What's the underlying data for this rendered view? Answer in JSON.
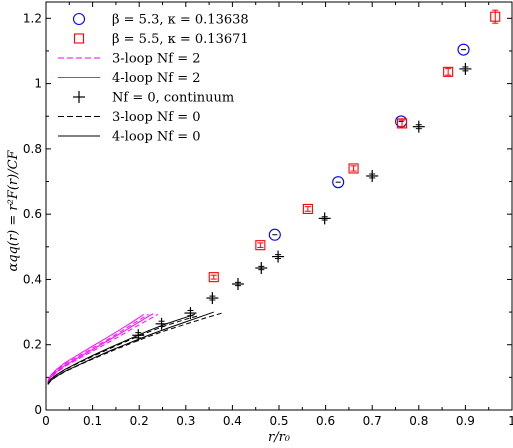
{
  "chart_data": {
    "type": "scatter",
    "title": "",
    "xlabel": "r/r₀",
    "ylabel": "αqq(r) = r²F(r)/CF",
    "xlim": [
      0,
      1
    ],
    "ylim": [
      0,
      1.25
    ],
    "xticks": [
      "0",
      "0.1",
      "0.2",
      "0.3",
      "0.4",
      "0.5",
      "0.6",
      "0.7",
      "0.8",
      "0.9",
      "1"
    ],
    "yticks": [
      "0",
      "0.2",
      "0.4",
      "0.6",
      "0.8",
      "1",
      "1.2"
    ],
    "grid": false,
    "legend_position": "top-left",
    "series": [
      {
        "name": "β = 5.3, κ = 0.13638",
        "kind": "points",
        "marker": "circle",
        "color": "#0000ff",
        "points": [
          [
            0.491,
            0.537
          ],
          [
            0.627,
            0.698
          ],
          [
            0.762,
            0.884
          ],
          [
            0.896,
            1.104
          ]
        ]
      },
      {
        "name": "β = 5.5, κ = 0.13671",
        "kind": "points",
        "marker": "square",
        "color": "#ff0000",
        "points": [
          [
            0.36,
            0.407
          ],
          [
            0.46,
            0.505
          ],
          [
            0.562,
            0.616
          ],
          [
            0.66,
            0.74
          ],
          [
            0.764,
            0.878
          ],
          [
            0.863,
            1.036
          ],
          [
            0.964,
            1.205
          ]
        ],
        "errors": [
          0.006,
          0.007,
          0.007,
          0.008,
          0.01,
          0.01,
          0.02
        ]
      },
      {
        "name": "3-loop Nf = 2",
        "kind": "curves",
        "style": "dashed",
        "color": "#ff00ff",
        "curves": [
          [
            [
              0.004,
              0.088
            ],
            [
              0.01,
              0.103
            ],
            [
              0.02,
              0.118
            ],
            [
              0.04,
              0.14
            ],
            [
              0.07,
              0.165
            ],
            [
              0.1,
              0.19
            ],
            [
              0.13,
              0.214
            ],
            [
              0.16,
              0.24
            ],
            [
              0.19,
              0.267
            ],
            [
              0.22,
              0.293
            ]
          ],
          [
            [
              0.004,
              0.084
            ],
            [
              0.01,
              0.098
            ],
            [
              0.02,
              0.112
            ],
            [
              0.04,
              0.133
            ],
            [
              0.07,
              0.157
            ],
            [
              0.1,
              0.18
            ],
            [
              0.13,
              0.204
            ],
            [
              0.16,
              0.228
            ],
            [
              0.19,
              0.253
            ],
            [
              0.22,
              0.277
            ],
            [
              0.24,
              0.293
            ]
          ]
        ]
      },
      {
        "name": "4-loop Nf = 2",
        "kind": "curves",
        "style": "solid",
        "color": "#ff00ff",
        "curves": [
          [
            [
              0.004,
              0.09
            ],
            [
              0.01,
              0.106
            ],
            [
              0.02,
              0.121
            ],
            [
              0.04,
              0.144
            ],
            [
              0.07,
              0.17
            ],
            [
              0.1,
              0.196
            ],
            [
              0.13,
              0.221
            ],
            [
              0.16,
              0.247
            ],
            [
              0.19,
              0.274
            ],
            [
              0.21,
              0.293
            ]
          ],
          [
            [
              0.004,
              0.086
            ],
            [
              0.01,
              0.1
            ],
            [
              0.02,
              0.114
            ],
            [
              0.04,
              0.136
            ],
            [
              0.07,
              0.161
            ],
            [
              0.1,
              0.185
            ],
            [
              0.13,
              0.21
            ],
            [
              0.16,
              0.235
            ],
            [
              0.19,
              0.261
            ],
            [
              0.22,
              0.287
            ],
            [
              0.23,
              0.295
            ]
          ]
        ]
      },
      {
        "name": "Nf = 0, continuum",
        "kind": "points",
        "marker": "plus",
        "color": "#000000",
        "points": [
          [
            0.198,
            0.229
          ],
          [
            0.248,
            0.264
          ],
          [
            0.31,
            0.297
          ],
          [
            0.357,
            0.343
          ],
          [
            0.412,
            0.386
          ],
          [
            0.462,
            0.435
          ],
          [
            0.498,
            0.47
          ],
          [
            0.598,
            0.587
          ],
          [
            0.7,
            0.717
          ],
          [
            0.8,
            0.868
          ],
          [
            0.9,
            1.045
          ]
        ],
        "errors": [
          0.008,
          0.008,
          0.008,
          0.006,
          0.005,
          0.005,
          0.006,
          0.005,
          0.006,
          0.006,
          0.006
        ]
      },
      {
        "name": "3-loop Nf = 0",
        "kind": "curves",
        "style": "dashed",
        "color": "#000000",
        "curves": [
          [
            [
              0.004,
              0.081
            ],
            [
              0.01,
              0.093
            ],
            [
              0.02,
              0.105
            ],
            [
              0.04,
              0.123
            ],
            [
              0.07,
              0.144
            ],
            [
              0.1,
              0.164
            ],
            [
              0.14,
              0.19
            ],
            [
              0.18,
              0.215
            ],
            [
              0.22,
              0.239
            ],
            [
              0.26,
              0.26
            ],
            [
              0.3,
              0.278
            ],
            [
              0.33,
              0.29
            ]
          ],
          [
            [
              0.004,
              0.078
            ],
            [
              0.01,
              0.089
            ],
            [
              0.02,
              0.1
            ],
            [
              0.04,
              0.117
            ],
            [
              0.07,
              0.137
            ],
            [
              0.1,
              0.156
            ],
            [
              0.14,
              0.18
            ],
            [
              0.18,
              0.203
            ],
            [
              0.22,
              0.225
            ],
            [
              0.26,
              0.245
            ],
            [
              0.3,
              0.263
            ],
            [
              0.34,
              0.281
            ],
            [
              0.38,
              0.298
            ]
          ]
        ]
      },
      {
        "name": "4-loop Nf = 0",
        "kind": "curves",
        "style": "solid",
        "color": "#000000",
        "curves": [
          [
            [
              0.004,
              0.082
            ],
            [
              0.01,
              0.094
            ],
            [
              0.02,
              0.106
            ],
            [
              0.04,
              0.124
            ],
            [
              0.07,
              0.146
            ],
            [
              0.1,
              0.167
            ],
            [
              0.14,
              0.193
            ],
            [
              0.18,
              0.218
            ],
            [
              0.22,
              0.243
            ],
            [
              0.26,
              0.265
            ],
            [
              0.3,
              0.284
            ],
            [
              0.32,
              0.294
            ]
          ],
          [
            [
              0.004,
              0.079
            ],
            [
              0.01,
              0.09
            ],
            [
              0.02,
              0.101
            ],
            [
              0.04,
              0.118
            ],
            [
              0.07,
              0.138
            ],
            [
              0.1,
              0.158
            ],
            [
              0.14,
              0.183
            ],
            [
              0.18,
              0.206
            ],
            [
              0.22,
              0.229
            ],
            [
              0.26,
              0.25
            ],
            [
              0.3,
              0.27
            ],
            [
              0.34,
              0.29
            ],
            [
              0.36,
              0.3
            ]
          ]
        ]
      }
    ]
  },
  "legend": [
    {
      "marker": "circle",
      "color": "#0000ff",
      "label": "β = 5.3, κ = 0.13638"
    },
    {
      "marker": "square",
      "color": "#ff0000",
      "label": "β = 5.5, κ = 0.13671"
    },
    {
      "marker": "dash-line",
      "color": "#ff00ff",
      "label": "3-loop Nf = 2"
    },
    {
      "marker": "solid-line",
      "color": "#ff00ff",
      "label": "4-loop Nf = 2"
    },
    {
      "marker": "plus",
      "color": "#000000",
      "label": "Nf = 0, continuum"
    },
    {
      "marker": "dash-line",
      "color": "#000000",
      "label": "3-loop Nf = 0"
    },
    {
      "marker": "solid-line",
      "color": "#000000",
      "label": "4-loop Nf = 0"
    }
  ]
}
